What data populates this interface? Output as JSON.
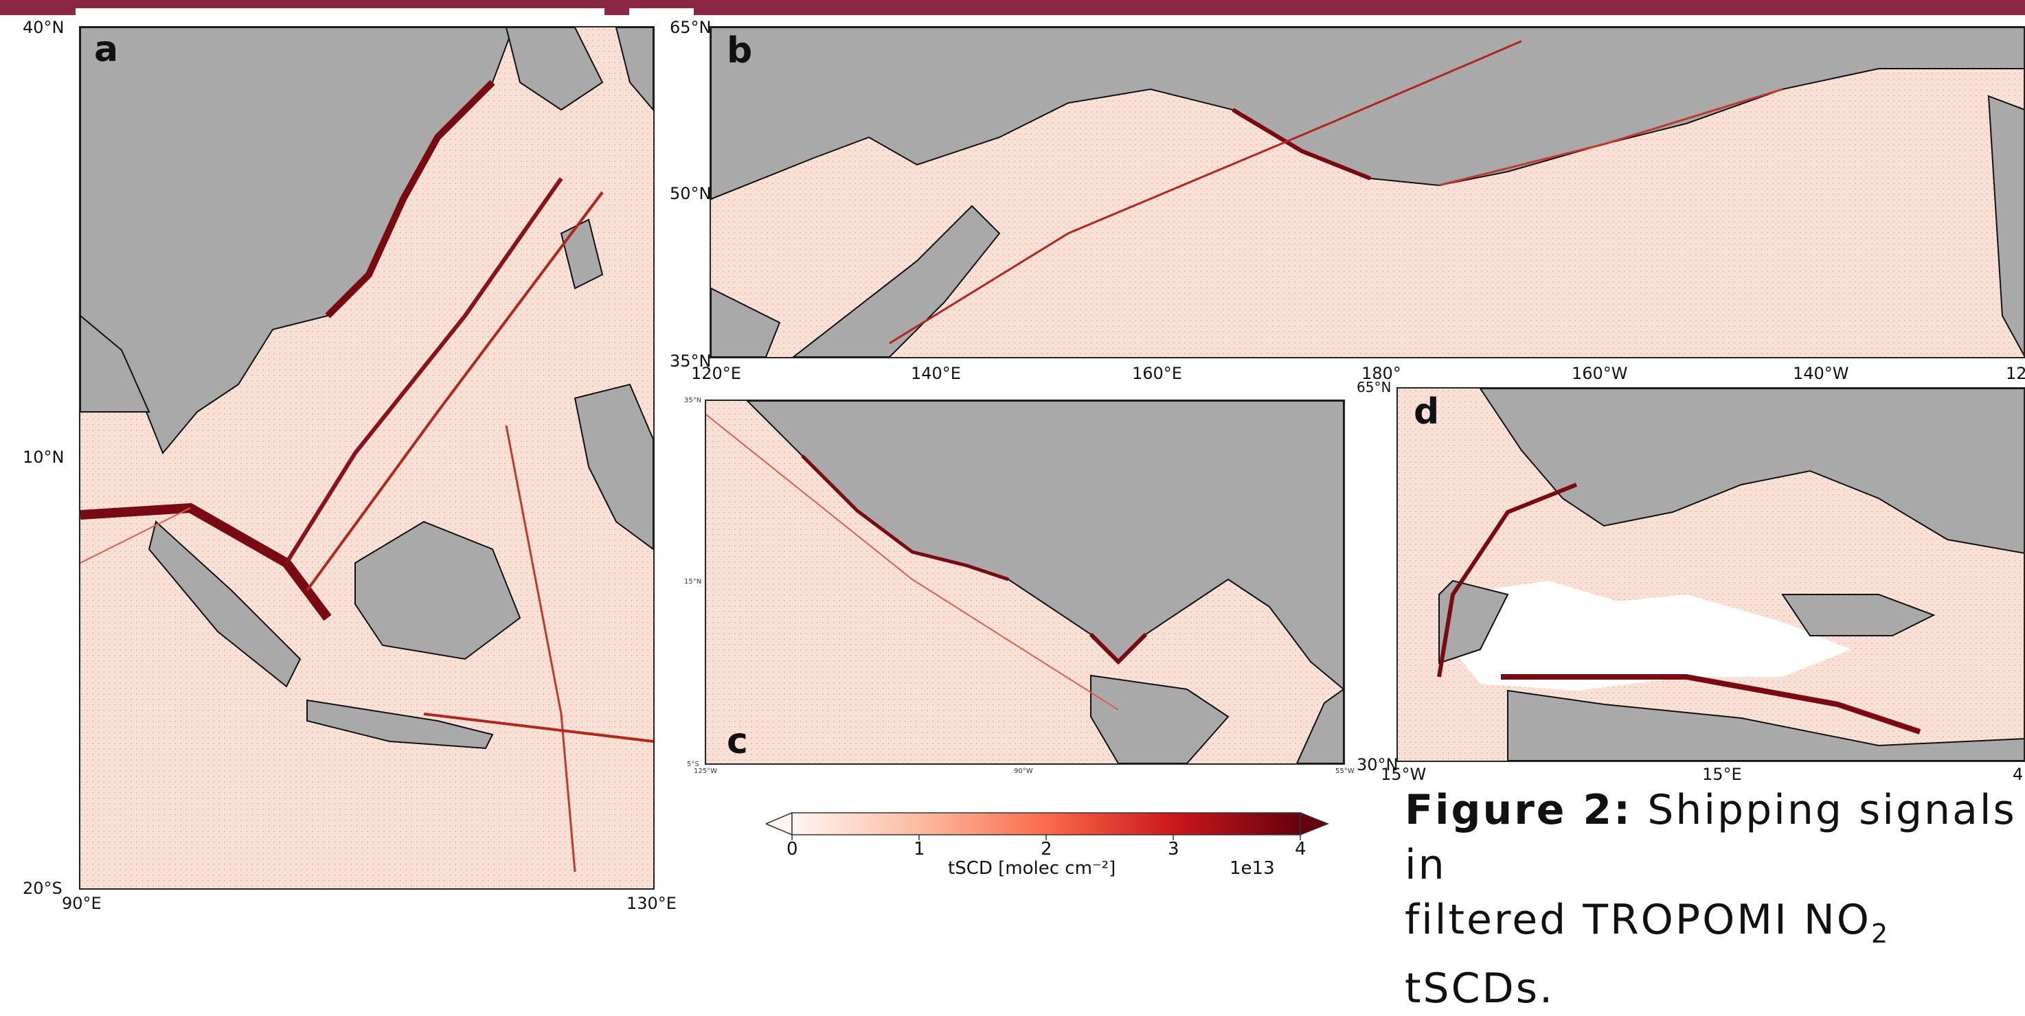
{
  "figure": {
    "caption_bold": "Figure 2:",
    "caption_line1": "Shipping signals in",
    "caption_line2_pre": "filtered TROPOMI NO",
    "caption_sub": "2",
    "caption_line2_post": " tSCDs."
  },
  "panels": [
    {
      "label": "a",
      "y_ticks": [
        "40°N",
        "10°N",
        "20°S"
      ],
      "x_ticks": [
        "90°E",
        "130°E"
      ]
    },
    {
      "label": "b",
      "y_ticks": [
        "65°N",
        "50°N",
        "35°N"
      ],
      "x_ticks": [
        "120°E",
        "140°E",
        "160°E",
        "180°",
        "160°W",
        "140°W",
        "12"
      ]
    },
    {
      "label": "c",
      "y_ticks": [
        "35°N",
        "15°N",
        "5°S"
      ],
      "x_ticks": [
        "125°W",
        "90°W",
        "55°W"
      ]
    },
    {
      "label": "d",
      "y_ticks": [
        "65°N",
        "30°N"
      ],
      "x_ticks": [
        "15°W",
        "15°E",
        "4"
      ]
    }
  ],
  "chart_data": {
    "type": "heatmap",
    "colorbar": {
      "label": "tSCD [molec cm⁻²]",
      "ticks": [
        "0",
        "1",
        "2",
        "3",
        "4"
      ],
      "range": [
        0,
        4
      ],
      "scale_note": "1e13",
      "colormap": "Reds",
      "extend": "both"
    },
    "land_color": "#a9a9a9"
  },
  "colors": {
    "topbar": "#8a2745",
    "land": "#a9a9a9",
    "ocean_low": "#fdebe4",
    "signal_high": "#7a0a12"
  }
}
